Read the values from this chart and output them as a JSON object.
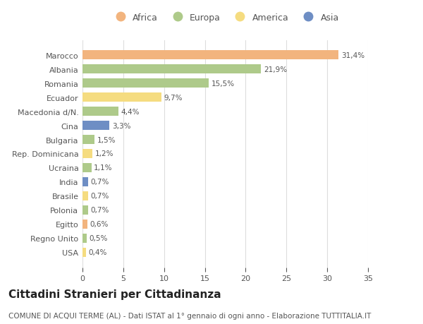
{
  "countries": [
    "Marocco",
    "Albania",
    "Romania",
    "Ecuador",
    "Macedonia d/N.",
    "Cina",
    "Bulgaria",
    "Rep. Dominicana",
    "Ucraina",
    "India",
    "Brasile",
    "Polonia",
    "Egitto",
    "Regno Unito",
    "USA"
  ],
  "values": [
    31.4,
    21.9,
    15.5,
    9.7,
    4.4,
    3.3,
    1.5,
    1.2,
    1.1,
    0.7,
    0.7,
    0.7,
    0.6,
    0.5,
    0.4
  ],
  "labels": [
    "31,4%",
    "21,9%",
    "15,5%",
    "9,7%",
    "4,4%",
    "3,3%",
    "1,5%",
    "1,2%",
    "1,1%",
    "0,7%",
    "0,7%",
    "0,7%",
    "0,6%",
    "0,5%",
    "0,4%"
  ],
  "continents": [
    "Africa",
    "Europa",
    "Europa",
    "America",
    "Europa",
    "Asia",
    "Europa",
    "America",
    "Europa",
    "Asia",
    "America",
    "Europa",
    "Africa",
    "Europa",
    "America"
  ],
  "continent_colors": {
    "Africa": "#F2B47E",
    "Europa": "#AECA8A",
    "America": "#F5DC80",
    "Asia": "#6E8EC4"
  },
  "legend_order": [
    "Africa",
    "Europa",
    "America",
    "Asia"
  ],
  "title": "Cittadini Stranieri per Cittadinanza",
  "subtitle": "COMUNE DI ACQUI TERME (AL) - Dati ISTAT al 1° gennaio di ogni anno - Elaborazione TUTTITALIA.IT",
  "xlim": [
    0,
    35
  ],
  "xticks": [
    0,
    5,
    10,
    15,
    20,
    25,
    30,
    35
  ],
  "background_color": "#ffffff",
  "plot_bg_color": "#ffffff",
  "bar_height": 0.65,
  "title_fontsize": 11,
  "subtitle_fontsize": 7.5,
  "label_fontsize": 7.5,
  "tick_fontsize": 8,
  "legend_fontsize": 9,
  "grid_color": "#dddddd",
  "text_color": "#555555",
  "label_color": "#555555"
}
